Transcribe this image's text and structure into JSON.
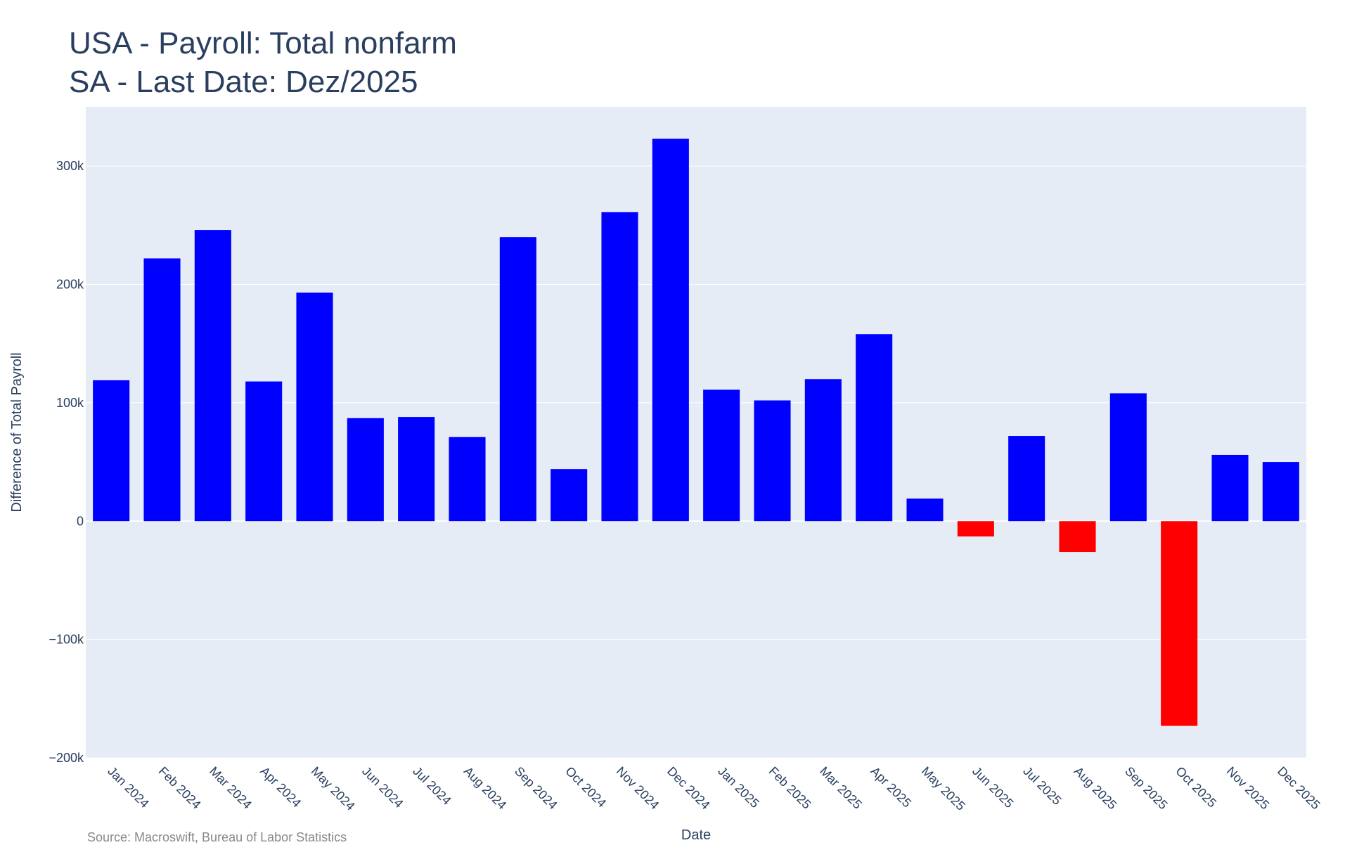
{
  "title_lines": [
    "USA - Payroll: Total nonfarm",
    "SA - Last Date: Dez/2025"
  ],
  "source": "Source: Macroswift, Bureau of Labor Statistics",
  "chart_data": {
    "type": "bar",
    "title": "USA - Payroll: Total nonfarm SA - Last Date: Dez/2025",
    "xlabel": "Date",
    "ylabel": "Difference of Total Payroll",
    "ylim": [
      -200000,
      350000
    ],
    "yticks": [
      -200000,
      -100000,
      0,
      100000,
      200000,
      300000
    ],
    "ytick_labels": [
      "−200k",
      "−100k",
      "0",
      "100k",
      "200k",
      "300k"
    ],
    "grid": true,
    "colors": {
      "positive": "#0000ff",
      "negative": "#ff0000",
      "plot_bg": "#e5ecf6",
      "grid": "#ffffff",
      "text": "#2a3f5f"
    },
    "categories": [
      "Jan 2024",
      "Feb 2024",
      "Mar 2024",
      "Apr 2024",
      "May 2024",
      "Jun 2024",
      "Jul 2024",
      "Aug 2024",
      "Sep 2024",
      "Oct 2024",
      "Nov 2024",
      "Dec 2024",
      "Jan 2025",
      "Feb 2025",
      "Mar 2025",
      "Apr 2025",
      "May 2025",
      "Jun 2025",
      "Jul 2025",
      "Aug 2025",
      "Sep 2025",
      "Oct 2025",
      "Nov 2025",
      "Dec 2025"
    ],
    "values": [
      119000,
      222000,
      246000,
      118000,
      193000,
      87000,
      88000,
      71000,
      240000,
      44000,
      261000,
      323000,
      111000,
      102000,
      120000,
      158000,
      19000,
      -13000,
      72000,
      -26000,
      108000,
      -173000,
      56000,
      50000
    ]
  }
}
